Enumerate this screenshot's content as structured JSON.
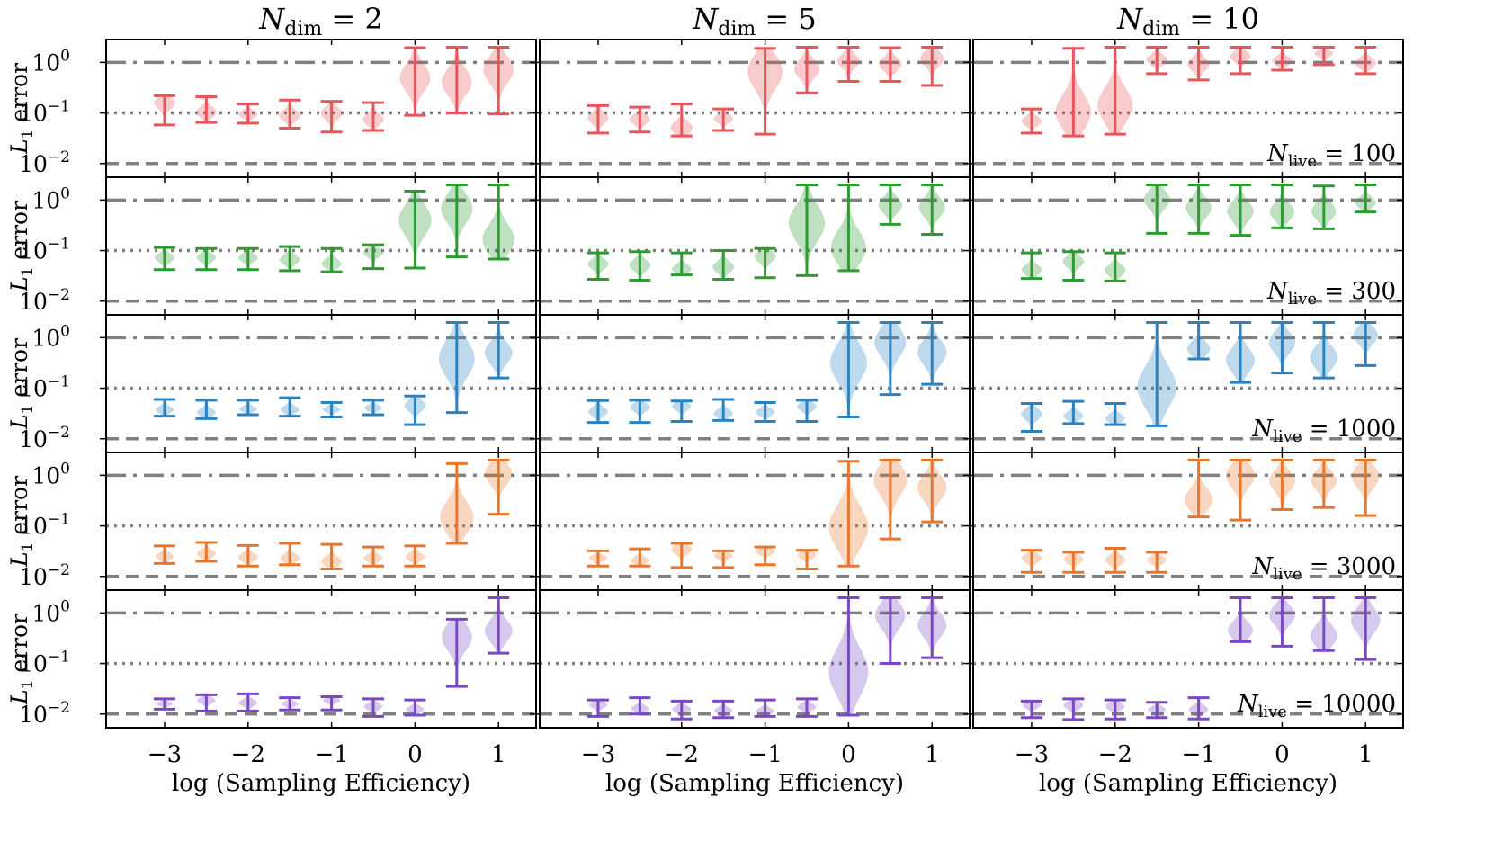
{
  "chart_data": {
    "type": "violin",
    "title_prefix": "N",
    "title_sub": "dim",
    "columns": [
      {
        "ndim": 2,
        "title_value": "= 2"
      },
      {
        "ndim": 5,
        "title_value": "= 5"
      },
      {
        "ndim": 10,
        "title_value": "= 10"
      }
    ],
    "ylabel_main": "L",
    "ylabel_sub": "1",
    "ylabel_rest": " error",
    "xlabel": "log (Sampling Efficiency)",
    "xticks": [
      -3,
      -2,
      -1,
      0,
      1
    ],
    "xtick_labels": [
      "−3",
      "−2",
      "−1",
      "0",
      "1"
    ],
    "xlim": [
      -3.7,
      1.45
    ],
    "ylim_log10": [
      -2.2,
      0.38
    ],
    "yticks": [
      {
        "exp": 0,
        "label_base": "10",
        "label_exp": "0"
      },
      {
        "exp": -1,
        "label_base": "10",
        "label_exp": "−1"
      },
      {
        "exp": -2,
        "label_base": "10",
        "label_exp": "−2"
      }
    ],
    "reference_lines": [
      {
        "value": 1.0,
        "style": "dashdot",
        "color": "#808080"
      },
      {
        "value": 0.1,
        "style": "dotted",
        "color": "#808080"
      },
      {
        "value": 0.01,
        "style": "dashed",
        "color": "#808080"
      }
    ],
    "rows": [
      {
        "nlive": 100,
        "label_prefix": "N",
        "label_sub": "live",
        "label_value": "= 100",
        "color": "#e8565b",
        "panels": [
          [
            {
              "x": -3,
              "min": 0.058,
              "max": 0.22
            },
            {
              "x": -2.5,
              "min": 0.065,
              "max": 0.21
            },
            {
              "x": -2,
              "min": 0.063,
              "max": 0.15
            },
            {
              "x": -1.5,
              "min": 0.05,
              "max": 0.18
            },
            {
              "x": -1,
              "min": 0.042,
              "max": 0.17
            },
            {
              "x": -0.5,
              "min": 0.045,
              "max": 0.16
            },
            {
              "x": 0,
              "min": 0.09,
              "max": 1.95
            },
            {
              "x": 0.5,
              "min": 0.1,
              "max": 2.0
            },
            {
              "x": 1,
              "min": 0.095,
              "max": 2.0
            }
          ],
          [
            {
              "x": -3,
              "min": 0.04,
              "max": 0.14
            },
            {
              "x": -2.5,
              "min": 0.042,
              "max": 0.13
            },
            {
              "x": -2,
              "min": 0.035,
              "max": 0.15
            },
            {
              "x": -1.5,
              "min": 0.045,
              "max": 0.12
            },
            {
              "x": -1,
              "min": 0.038,
              "max": 1.9
            },
            {
              "x": -0.5,
              "min": 0.25,
              "max": 2.0
            },
            {
              "x": 0,
              "min": 0.42,
              "max": 2.0
            },
            {
              "x": 0.5,
              "min": 0.42,
              "max": 1.95
            },
            {
              "x": 1,
              "min": 0.35,
              "max": 2.0
            }
          ],
          [
            {
              "x": -3,
              "min": 0.04,
              "max": 0.12
            },
            {
              "x": -2.5,
              "min": 0.035,
              "max": 1.9
            },
            {
              "x": -2,
              "min": 0.038,
              "max": 2.0
            },
            {
              "x": -1.5,
              "min": 0.6,
              "max": 2.0
            },
            {
              "x": -1,
              "min": 0.45,
              "max": 2.0
            },
            {
              "x": -0.5,
              "min": 0.6,
              "max": 2.0
            },
            {
              "x": 0,
              "min": 0.7,
              "max": 2.0
            },
            {
              "x": 0.5,
              "min": 0.9,
              "max": 2.0
            },
            {
              "x": 1,
              "min": 0.6,
              "max": 2.0
            }
          ]
        ]
      },
      {
        "nlive": 300,
        "label_prefix": "N",
        "label_sub": "live",
        "label_value": "= 300",
        "color": "#2e9b32",
        "panels": [
          [
            {
              "x": -3,
              "min": 0.042,
              "max": 0.115
            },
            {
              "x": -2.5,
              "min": 0.042,
              "max": 0.11
            },
            {
              "x": -2,
              "min": 0.042,
              "max": 0.11
            },
            {
              "x": -1.5,
              "min": 0.04,
              "max": 0.12
            },
            {
              "x": -1,
              "min": 0.038,
              "max": 0.11
            },
            {
              "x": -0.5,
              "min": 0.044,
              "max": 0.13
            },
            {
              "x": 0,
              "min": 0.045,
              "max": 1.5
            },
            {
              "x": 0.5,
              "min": 0.075,
              "max": 2.0
            },
            {
              "x": 1,
              "min": 0.068,
              "max": 2.0
            }
          ],
          [
            {
              "x": -3,
              "min": 0.027,
              "max": 0.09
            },
            {
              "x": -2.5,
              "min": 0.026,
              "max": 0.095
            },
            {
              "x": -2,
              "min": 0.033,
              "max": 0.09
            },
            {
              "x": -1.5,
              "min": 0.027,
              "max": 0.1
            },
            {
              "x": -1,
              "min": 0.029,
              "max": 0.11
            },
            {
              "x": -0.5,
              "min": 0.032,
              "max": 2.0
            },
            {
              "x": 0,
              "min": 0.04,
              "max": 2.0
            },
            {
              "x": 0.5,
              "min": 0.33,
              "max": 2.0
            },
            {
              "x": 1,
              "min": 0.21,
              "max": 2.0
            }
          ],
          [
            {
              "x": -3,
              "min": 0.028,
              "max": 0.09
            },
            {
              "x": -2.5,
              "min": 0.026,
              "max": 0.095
            },
            {
              "x": -2,
              "min": 0.025,
              "max": 0.09
            },
            {
              "x": -1.5,
              "min": 0.22,
              "max": 2.0
            },
            {
              "x": -1,
              "min": 0.22,
              "max": 2.0
            },
            {
              "x": -0.5,
              "min": 0.2,
              "max": 2.0
            },
            {
              "x": 0,
              "min": 0.28,
              "max": 2.0
            },
            {
              "x": 0.5,
              "min": 0.27,
              "max": 1.9
            },
            {
              "x": 1,
              "min": 0.58,
              "max": 2.0
            }
          ]
        ]
      },
      {
        "nlive": 1000,
        "label_prefix": "N",
        "label_sub": "live",
        "label_value": "= 1000",
        "color": "#2a83c0",
        "panels": [
          [
            {
              "x": -3,
              "min": 0.028,
              "max": 0.06
            },
            {
              "x": -2.5,
              "min": 0.025,
              "max": 0.058
            },
            {
              "x": -2,
              "min": 0.03,
              "max": 0.058
            },
            {
              "x": -1.5,
              "min": 0.028,
              "max": 0.065
            },
            {
              "x": -1,
              "min": 0.027,
              "max": 0.052
            },
            {
              "x": -0.5,
              "min": 0.03,
              "max": 0.058
            },
            {
              "x": 0,
              "min": 0.019,
              "max": 0.07
            },
            {
              "x": 0.5,
              "min": 0.033,
              "max": 2.0
            },
            {
              "x": 1,
              "min": 0.16,
              "max": 2.0
            }
          ],
          [
            {
              "x": -3,
              "min": 0.021,
              "max": 0.057
            },
            {
              "x": -2.5,
              "min": 0.021,
              "max": 0.058
            },
            {
              "x": -2,
              "min": 0.022,
              "max": 0.056
            },
            {
              "x": -1.5,
              "min": 0.023,
              "max": 0.06
            },
            {
              "x": -1,
              "min": 0.022,
              "max": 0.052
            },
            {
              "x": -0.5,
              "min": 0.022,
              "max": 0.058
            },
            {
              "x": 0,
              "min": 0.027,
              "max": 2.0
            },
            {
              "x": 0.5,
              "min": 0.075,
              "max": 2.0
            },
            {
              "x": 1,
              "min": 0.12,
              "max": 2.0
            }
          ],
          [
            {
              "x": -3,
              "min": 0.014,
              "max": 0.05
            },
            {
              "x": -2.5,
              "min": 0.02,
              "max": 0.055
            },
            {
              "x": -2,
              "min": 0.019,
              "max": 0.05
            },
            {
              "x": -1.5,
              "min": 0.018,
              "max": 2.0
            },
            {
              "x": -1,
              "min": 0.38,
              "max": 2.0
            },
            {
              "x": -0.5,
              "min": 0.13,
              "max": 2.0
            },
            {
              "x": 0,
              "min": 0.2,
              "max": 2.0
            },
            {
              "x": 0.5,
              "min": 0.16,
              "max": 2.0
            },
            {
              "x": 1,
              "min": 0.28,
              "max": 2.0
            }
          ]
        ]
      },
      {
        "nlive": 3000,
        "label_prefix": "N",
        "label_sub": "live",
        "label_value": "= 3000",
        "color": "#e8772e",
        "panels": [
          [
            {
              "x": -3,
              "min": 0.018,
              "max": 0.04
            },
            {
              "x": -2.5,
              "min": 0.02,
              "max": 0.047
            },
            {
              "x": -2,
              "min": 0.016,
              "max": 0.041
            },
            {
              "x": -1.5,
              "min": 0.017,
              "max": 0.045
            },
            {
              "x": -1,
              "min": 0.014,
              "max": 0.043
            },
            {
              "x": -0.5,
              "min": 0.016,
              "max": 0.038
            },
            {
              "x": 0,
              "min": 0.016,
              "max": 0.04
            },
            {
              "x": 0.5,
              "min": 0.045,
              "max": 1.7
            },
            {
              "x": 1,
              "min": 0.17,
              "max": 2.0
            }
          ],
          [
            {
              "x": -3,
              "min": 0.016,
              "max": 0.032
            },
            {
              "x": -2.5,
              "min": 0.016,
              "max": 0.035
            },
            {
              "x": -2,
              "min": 0.015,
              "max": 0.045
            },
            {
              "x": -1.5,
              "min": 0.015,
              "max": 0.032
            },
            {
              "x": -1,
              "min": 0.017,
              "max": 0.038
            },
            {
              "x": -0.5,
              "min": 0.014,
              "max": 0.033
            },
            {
              "x": 0,
              "min": 0.016,
              "max": 1.9
            },
            {
              "x": 0.5,
              "min": 0.055,
              "max": 2.0
            },
            {
              "x": 1,
              "min": 0.12,
              "max": 2.0
            }
          ],
          [
            {
              "x": -3,
              "min": 0.012,
              "max": 0.033
            },
            {
              "x": -2.5,
              "min": 0.012,
              "max": 0.03
            },
            {
              "x": -2,
              "min": 0.012,
              "max": 0.036
            },
            {
              "x": -1.5,
              "min": 0.012,
              "max": 0.03
            },
            {
              "x": -1,
              "min": 0.15,
              "max": 2.0
            },
            {
              "x": -0.5,
              "min": 0.13,
              "max": 2.0
            },
            {
              "x": 0,
              "min": 0.21,
              "max": 2.0
            },
            {
              "x": 0.5,
              "min": 0.23,
              "max": 2.0
            },
            {
              "x": 1,
              "min": 0.16,
              "max": 2.0
            }
          ]
        ]
      },
      {
        "nlive": 10000,
        "label_prefix": "N",
        "label_sub": "live",
        "label_value": "= 10000",
        "color": "#7b48c4",
        "panels": [
          [
            {
              "x": -3,
              "min": 0.0125,
              "max": 0.02
            },
            {
              "x": -2.5,
              "min": 0.0115,
              "max": 0.024
            },
            {
              "x": -2,
              "min": 0.0115,
              "max": 0.025
            },
            {
              "x": -1.5,
              "min": 0.012,
              "max": 0.021
            },
            {
              "x": -1,
              "min": 0.012,
              "max": 0.022
            },
            {
              "x": -0.5,
              "min": 0.009,
              "max": 0.02
            },
            {
              "x": 0,
              "min": 0.0095,
              "max": 0.019
            },
            {
              "x": 0.5,
              "min": 0.035,
              "max": 0.75
            },
            {
              "x": 1,
              "min": 0.16,
              "max": 2.0
            }
          ],
          [
            {
              "x": -3,
              "min": 0.009,
              "max": 0.019
            },
            {
              "x": -2.5,
              "min": 0.01,
              "max": 0.021
            },
            {
              "x": -2,
              "min": 0.008,
              "max": 0.018
            },
            {
              "x": -1.5,
              "min": 0.0085,
              "max": 0.018
            },
            {
              "x": -1,
              "min": 0.009,
              "max": 0.019
            },
            {
              "x": -0.5,
              "min": 0.009,
              "max": 0.02
            },
            {
              "x": 0,
              "min": 0.0095,
              "max": 2.0
            },
            {
              "x": 0.5,
              "min": 0.1,
              "max": 2.0
            },
            {
              "x": 1,
              "min": 0.13,
              "max": 2.0
            }
          ],
          [
            {
              "x": -3,
              "min": 0.0085,
              "max": 0.018
            },
            {
              "x": -2.5,
              "min": 0.0078,
              "max": 0.02
            },
            {
              "x": -2,
              "min": 0.008,
              "max": 0.019
            },
            {
              "x": -1.5,
              "min": 0.0085,
              "max": 0.017
            },
            {
              "x": -1,
              "min": 0.008,
              "max": 0.021
            },
            {
              "x": -0.5,
              "min": 0.27,
              "max": 2.0
            },
            {
              "x": 0,
              "min": 0.22,
              "max": 2.0
            },
            {
              "x": 0.5,
              "min": 0.18,
              "max": 2.0
            },
            {
              "x": 1,
              "min": 0.12,
              "max": 2.0
            }
          ]
        ]
      }
    ]
  }
}
